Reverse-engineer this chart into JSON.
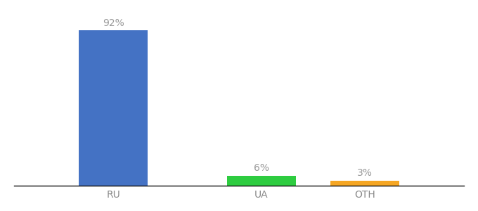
{
  "categories": [
    "RU",
    "UA",
    "OTH"
  ],
  "values": [
    92,
    6,
    3
  ],
  "bar_colors": [
    "#4472c4",
    "#2ecc40",
    "#f5a623"
  ],
  "labels": [
    "92%",
    "6%",
    "3%"
  ],
  "background_color": "#ffffff",
  "ylim": [
    0,
    100
  ],
  "bar_width": 0.55,
  "label_fontsize": 10,
  "tick_fontsize": 10,
  "label_color": "#999999",
  "tick_color": "#888888"
}
